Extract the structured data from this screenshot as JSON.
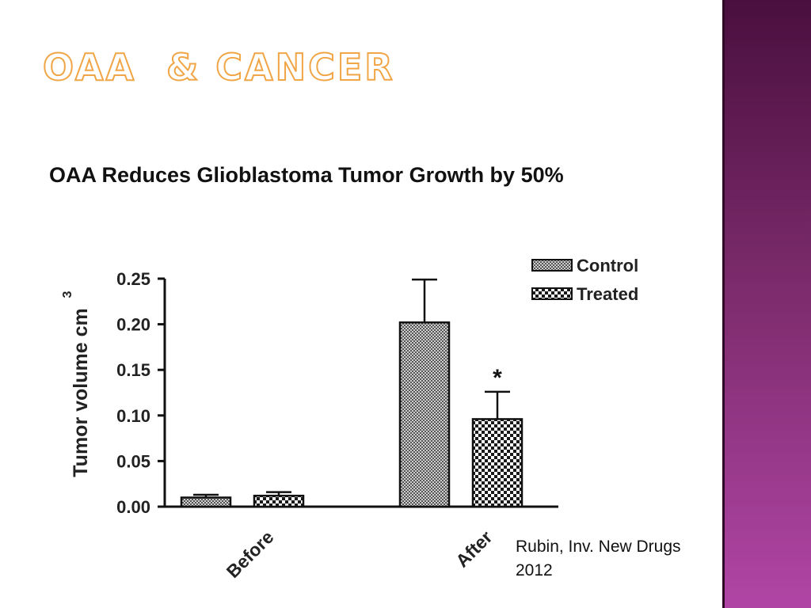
{
  "slide": {
    "title": "OAA  & Cancer",
    "subtitle": "OAA Reduces Glioblastoma Tumor Growth by 50%",
    "citation_line1": "Rubin, Inv. New Drugs",
    "citation_line2": "2012"
  },
  "colors": {
    "title_outline": "#f0a646",
    "side_band_top": "#4a0f3e",
    "side_band_bottom": "#b045a5"
  },
  "chart_data": {
    "type": "bar",
    "categories": [
      "Before",
      "After"
    ],
    "series": [
      {
        "name": "Control",
        "values": [
          0.01,
          0.202
        ],
        "errors": [
          0.003,
          0.047
        ],
        "pattern": "fine-hatch"
      },
      {
        "name": "Treated",
        "values": [
          0.012,
          0.096
        ],
        "errors": [
          0.004,
          0.03
        ],
        "pattern": "checker"
      }
    ],
    "ylabel_main": "Tumor volume cm",
    "ylabel_sup": "3",
    "ylim": [
      0,
      0.25
    ],
    "yticks": [
      "0.00",
      "0.05",
      "0.10",
      "0.15",
      "0.20",
      "0.25"
    ],
    "annotations": [
      {
        "text": "*",
        "category": "After",
        "series": "Treated"
      }
    ],
    "legend": "top-right",
    "grid": false
  }
}
